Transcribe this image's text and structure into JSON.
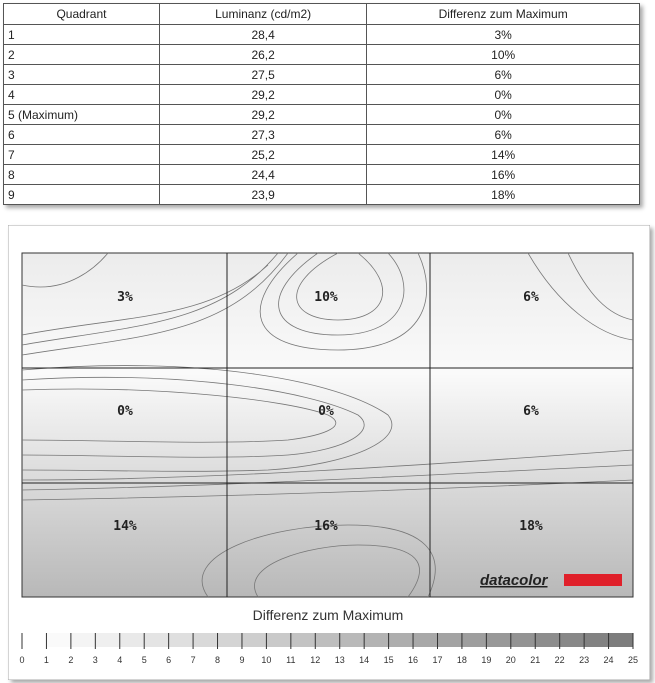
{
  "table": {
    "header": [
      "Quadrant",
      "Luminanz (cd/m2)",
      "Differenz zum Maximum"
    ],
    "rows": [
      [
        "1",
        "28,4",
        "3%"
      ],
      [
        "2",
        "26,2",
        "10%"
      ],
      [
        "3",
        "27,5",
        "6%"
      ],
      [
        "4",
        "29,2",
        "0%"
      ],
      [
        "5 (Maximum)",
        "29,2",
        "0%"
      ],
      [
        "6",
        "27,3",
        "6%"
      ],
      [
        "7",
        "25,2",
        "14%"
      ],
      [
        "8",
        "24,4",
        "16%"
      ],
      [
        "9",
        "23,9",
        "18%"
      ]
    ]
  },
  "figure": {
    "labels": [
      [
        "3%",
        "10%",
        "6%"
      ],
      [
        "0%",
        "0%",
        "6%"
      ],
      [
        "14%",
        "16%",
        "18%"
      ]
    ],
    "logo": "datacolor",
    "legend_title": "Differenz zum Maximum",
    "scale_ticks": [
      0,
      1,
      2,
      3,
      4,
      5,
      6,
      7,
      8,
      9,
      10,
      11,
      12,
      13,
      14,
      15,
      16,
      17,
      18,
      19,
      20,
      21,
      22,
      23,
      24,
      25
    ]
  }
}
